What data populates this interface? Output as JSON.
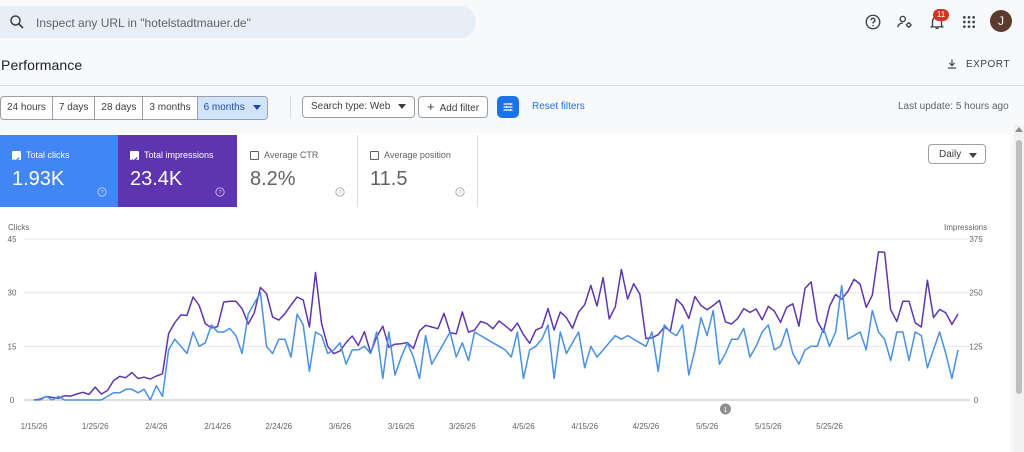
{
  "search": {
    "placeholder": "Inspect any URL in \"hotelstadtmauer.de\""
  },
  "topbar": {
    "notification_count": "11",
    "avatar_letter": "J"
  },
  "page": {
    "title": "Performance",
    "export_label": "EXPORT"
  },
  "filters": {
    "ranges": [
      "24 hours",
      "7 days",
      "28 days",
      "3 months",
      "6 months"
    ],
    "selected_range": "6 months",
    "search_type": "Search type: Web",
    "add_filter": "Add filter",
    "reset_filters": "Reset filters",
    "last_update": "Last update: 5 hours ago"
  },
  "metrics": [
    {
      "label": "Total clicks",
      "value": "1.93K",
      "checked": true,
      "color": "#4285f4"
    },
    {
      "label": "Total impressions",
      "value": "23.4K",
      "checked": true,
      "color": "#5e35b1"
    },
    {
      "label": "Average CTR",
      "value": "8.2%",
      "checked": false
    },
    {
      "label": "Average position",
      "value": "11.5",
      "checked": false
    }
  ],
  "granularity": "Daily",
  "annotation_marker": "1",
  "chart_data": {
    "type": "line",
    "left_axis": {
      "label": "Clicks",
      "ticks": [
        0,
        15,
        30,
        45
      ],
      "range": [
        0,
        45
      ]
    },
    "right_axis": {
      "label": "Impressions",
      "ticks": [
        0,
        125,
        250,
        375
      ],
      "range": [
        0,
        375
      ]
    },
    "x_tick_labels": [
      "1/15/26",
      "1/25/26",
      "2/4/26",
      "2/14/26",
      "2/24/26",
      "3/6/26",
      "3/16/26",
      "3/26/26",
      "4/5/26",
      "4/15/26",
      "4/25/26",
      "5/5/26",
      "5/15/26",
      "5/25/26"
    ],
    "start_date": "1/15/26",
    "series": [
      {
        "name": "Clicks",
        "axis": "left",
        "color": "#4a90e2",
        "values": [
          0,
          0,
          1,
          0,
          1,
          0,
          0,
          0,
          0,
          0,
          0,
          0,
          1,
          2,
          2,
          3,
          3,
          2,
          3,
          0,
          4,
          1,
          14,
          17,
          15,
          13,
          19,
          15,
          16,
          21,
          19,
          19,
          20,
          18,
          13,
          24,
          27,
          30,
          15,
          13,
          17,
          17,
          12,
          24,
          21,
          8,
          19,
          18,
          13,
          14,
          16,
          10,
          14,
          14,
          15,
          13,
          19,
          6,
          19,
          7,
          12,
          16,
          12,
          6,
          18,
          10,
          13,
          16,
          19,
          12,
          16,
          11,
          19,
          18,
          17,
          16,
          15,
          14,
          12,
          19,
          6,
          14,
          15,
          17,
          21,
          6,
          19,
          13,
          16,
          19,
          9,
          15,
          12,
          14,
          16,
          18,
          17,
          18,
          17,
          16,
          15,
          19,
          8,
          21,
          19,
          18,
          21,
          7,
          14,
          23,
          18,
          25,
          10,
          13,
          17,
          17,
          20,
          12,
          15,
          19,
          21,
          14,
          15,
          20,
          13,
          10,
          14,
          15,
          15,
          20,
          15,
          19,
          32,
          17,
          18,
          19,
          14,
          25,
          19,
          17,
          11,
          19,
          19,
          11,
          19,
          18,
          9,
          14,
          19,
          13,
          6,
          14
        ]
      },
      {
        "name": "Impressions",
        "axis": "right",
        "color": "#5e35b1",
        "values": [
          0,
          2,
          8,
          6,
          4,
          10,
          9,
          14,
          18,
          13,
          30,
          14,
          22,
          45,
          55,
          52,
          64,
          50,
          53,
          49,
          56,
          61,
          155,
          180,
          198,
          197,
          240,
          220,
          178,
          168,
          171,
          228,
          230,
          230,
          213,
          177,
          203,
          262,
          248,
          193,
          186,
          201,
          221,
          240,
          233,
          170,
          297,
          178,
          125,
          108,
          114,
          134,
          149,
          127,
          159,
          110,
          147,
          172,
          123,
          130,
          131,
          134,
          120,
          161,
          174,
          170,
          166,
          202,
          157,
          154,
          205,
          158,
          163,
          183,
          178,
          166,
          184,
          173,
          161,
          179,
          152,
          132,
          163,
          169,
          213,
          163,
          205,
          192,
          167,
          205,
          222,
          267,
          219,
          285,
          189,
          217,
          304,
          235,
          271,
          247,
          143,
          145,
          152,
          170,
          161,
          235,
          220,
          190,
          241,
          220,
          210,
          220,
          232,
          182,
          177,
          190,
          213,
          204,
          212,
          187,
          218,
          207,
          181,
          216,
          224,
          172,
          260,
          275,
          184,
          158,
          218,
          246,
          235,
          253,
          281,
          270,
          216,
          244,
          345,
          344,
          210,
          183,
          230,
          230,
          180,
          170,
          279,
          192,
          211,
          203,
          176,
          200
        ]
      }
    ]
  }
}
